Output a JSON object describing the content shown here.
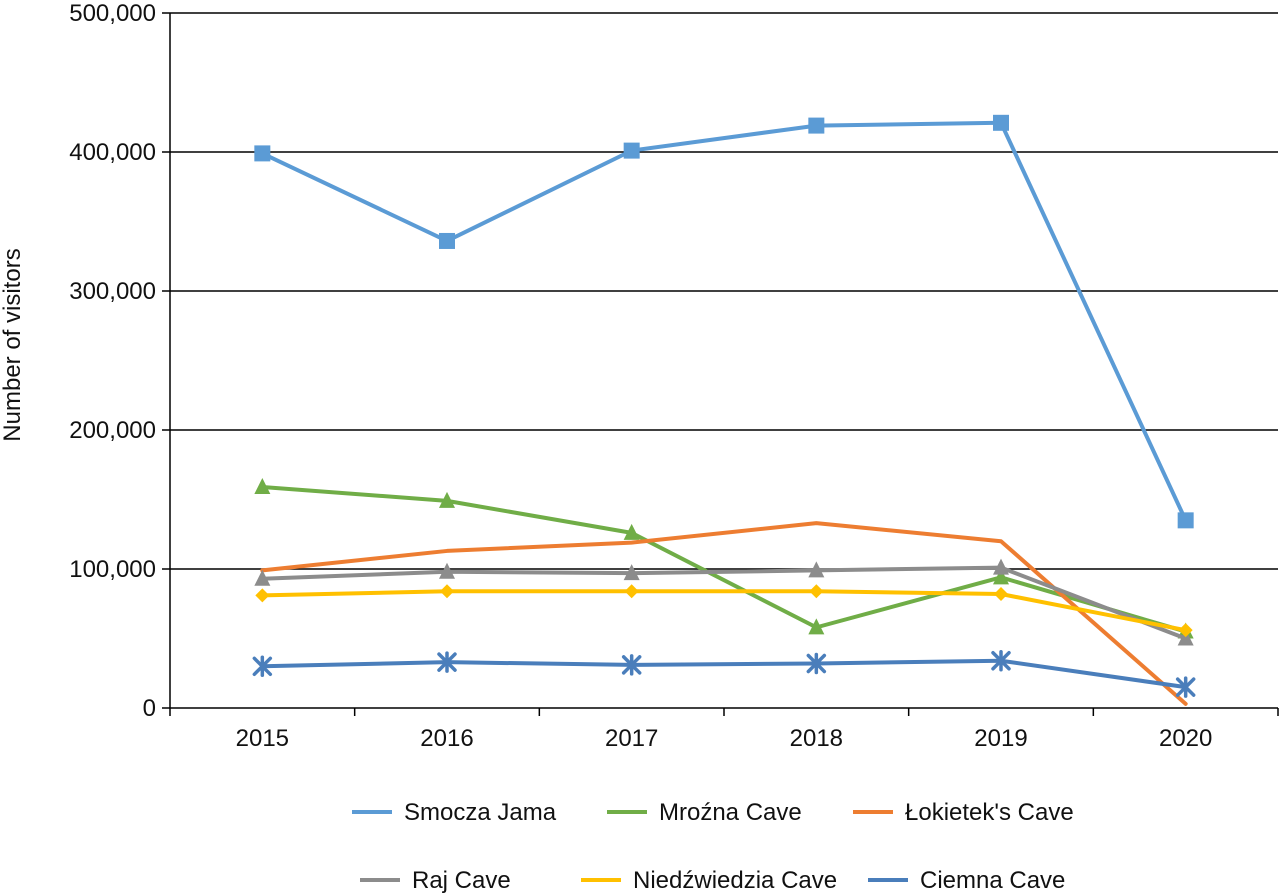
{
  "chart_data": {
    "type": "line",
    "title": "",
    "xlabel": "",
    "ylabel": "Number of visitors",
    "ylim": [
      0,
      500000
    ],
    "y_ticks": [
      0,
      100000,
      200000,
      300000,
      400000,
      500000
    ],
    "y_tick_labels": [
      "0",
      "100,000",
      "200,000",
      "300,000",
      "400,000",
      "500,000"
    ],
    "grid": true,
    "categories": [
      "2015",
      "2016",
      "2017",
      "2018",
      "2019",
      "2020"
    ],
    "legend_position": "bottom",
    "series": [
      {
        "name": "Smocza Jama",
        "color": "#5B9BD5",
        "marker": "square",
        "values": [
          399000,
          336000,
          401000,
          419000,
          421000,
          135000
        ]
      },
      {
        "name": "Mroźna Cave",
        "color": "#70AD47",
        "marker": "triangle",
        "values": [
          159000,
          149000,
          126000,
          58000,
          94000,
          55000
        ]
      },
      {
        "name": "Łokietek's Cave",
        "color": "#ED7D31",
        "marker": "none",
        "values": [
          99000,
          113000,
          119000,
          133000,
          120000,
          3000
        ]
      },
      {
        "name": "Raj Cave",
        "color": "#8C8C8C",
        "marker": "triangle",
        "values": [
          93000,
          98000,
          97000,
          99000,
          101000,
          50000
        ]
      },
      {
        "name": "Niedźwiedzia Cave",
        "color": "#FFC000",
        "marker": "diamond",
        "values": [
          81000,
          84000,
          84000,
          84000,
          82000,
          56000
        ]
      },
      {
        "name": "Ciemna Cave",
        "color": "#4A7EBB",
        "marker": "star",
        "values": [
          30000,
          33000,
          31000,
          32000,
          34000,
          15000
        ]
      }
    ]
  }
}
